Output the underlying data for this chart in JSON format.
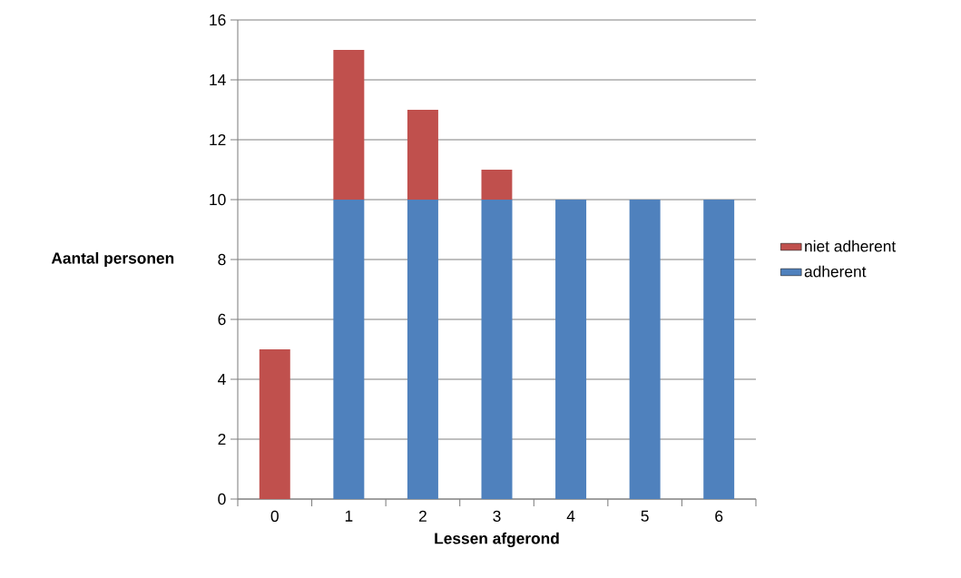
{
  "chart_data": {
    "type": "bar",
    "stacked": true,
    "xlabel": "Lessen afgerond",
    "ylabel": "Aantal personen",
    "categories": [
      "0",
      "1",
      "2",
      "3",
      "4",
      "5",
      "6"
    ],
    "series": [
      {
        "name": "adherent",
        "color": "#4f81bd",
        "values": [
          0,
          10,
          10,
          10,
          10,
          10,
          10
        ]
      },
      {
        "name": "niet adherent",
        "color": "#c0504d",
        "values": [
          5,
          5,
          3,
          1,
          0,
          0,
          0
        ]
      }
    ],
    "ylim": [
      0,
      16
    ],
    "yticks": [
      0,
      2,
      4,
      6,
      8,
      10,
      12,
      14,
      16
    ],
    "grid": "y",
    "legend": "right"
  }
}
